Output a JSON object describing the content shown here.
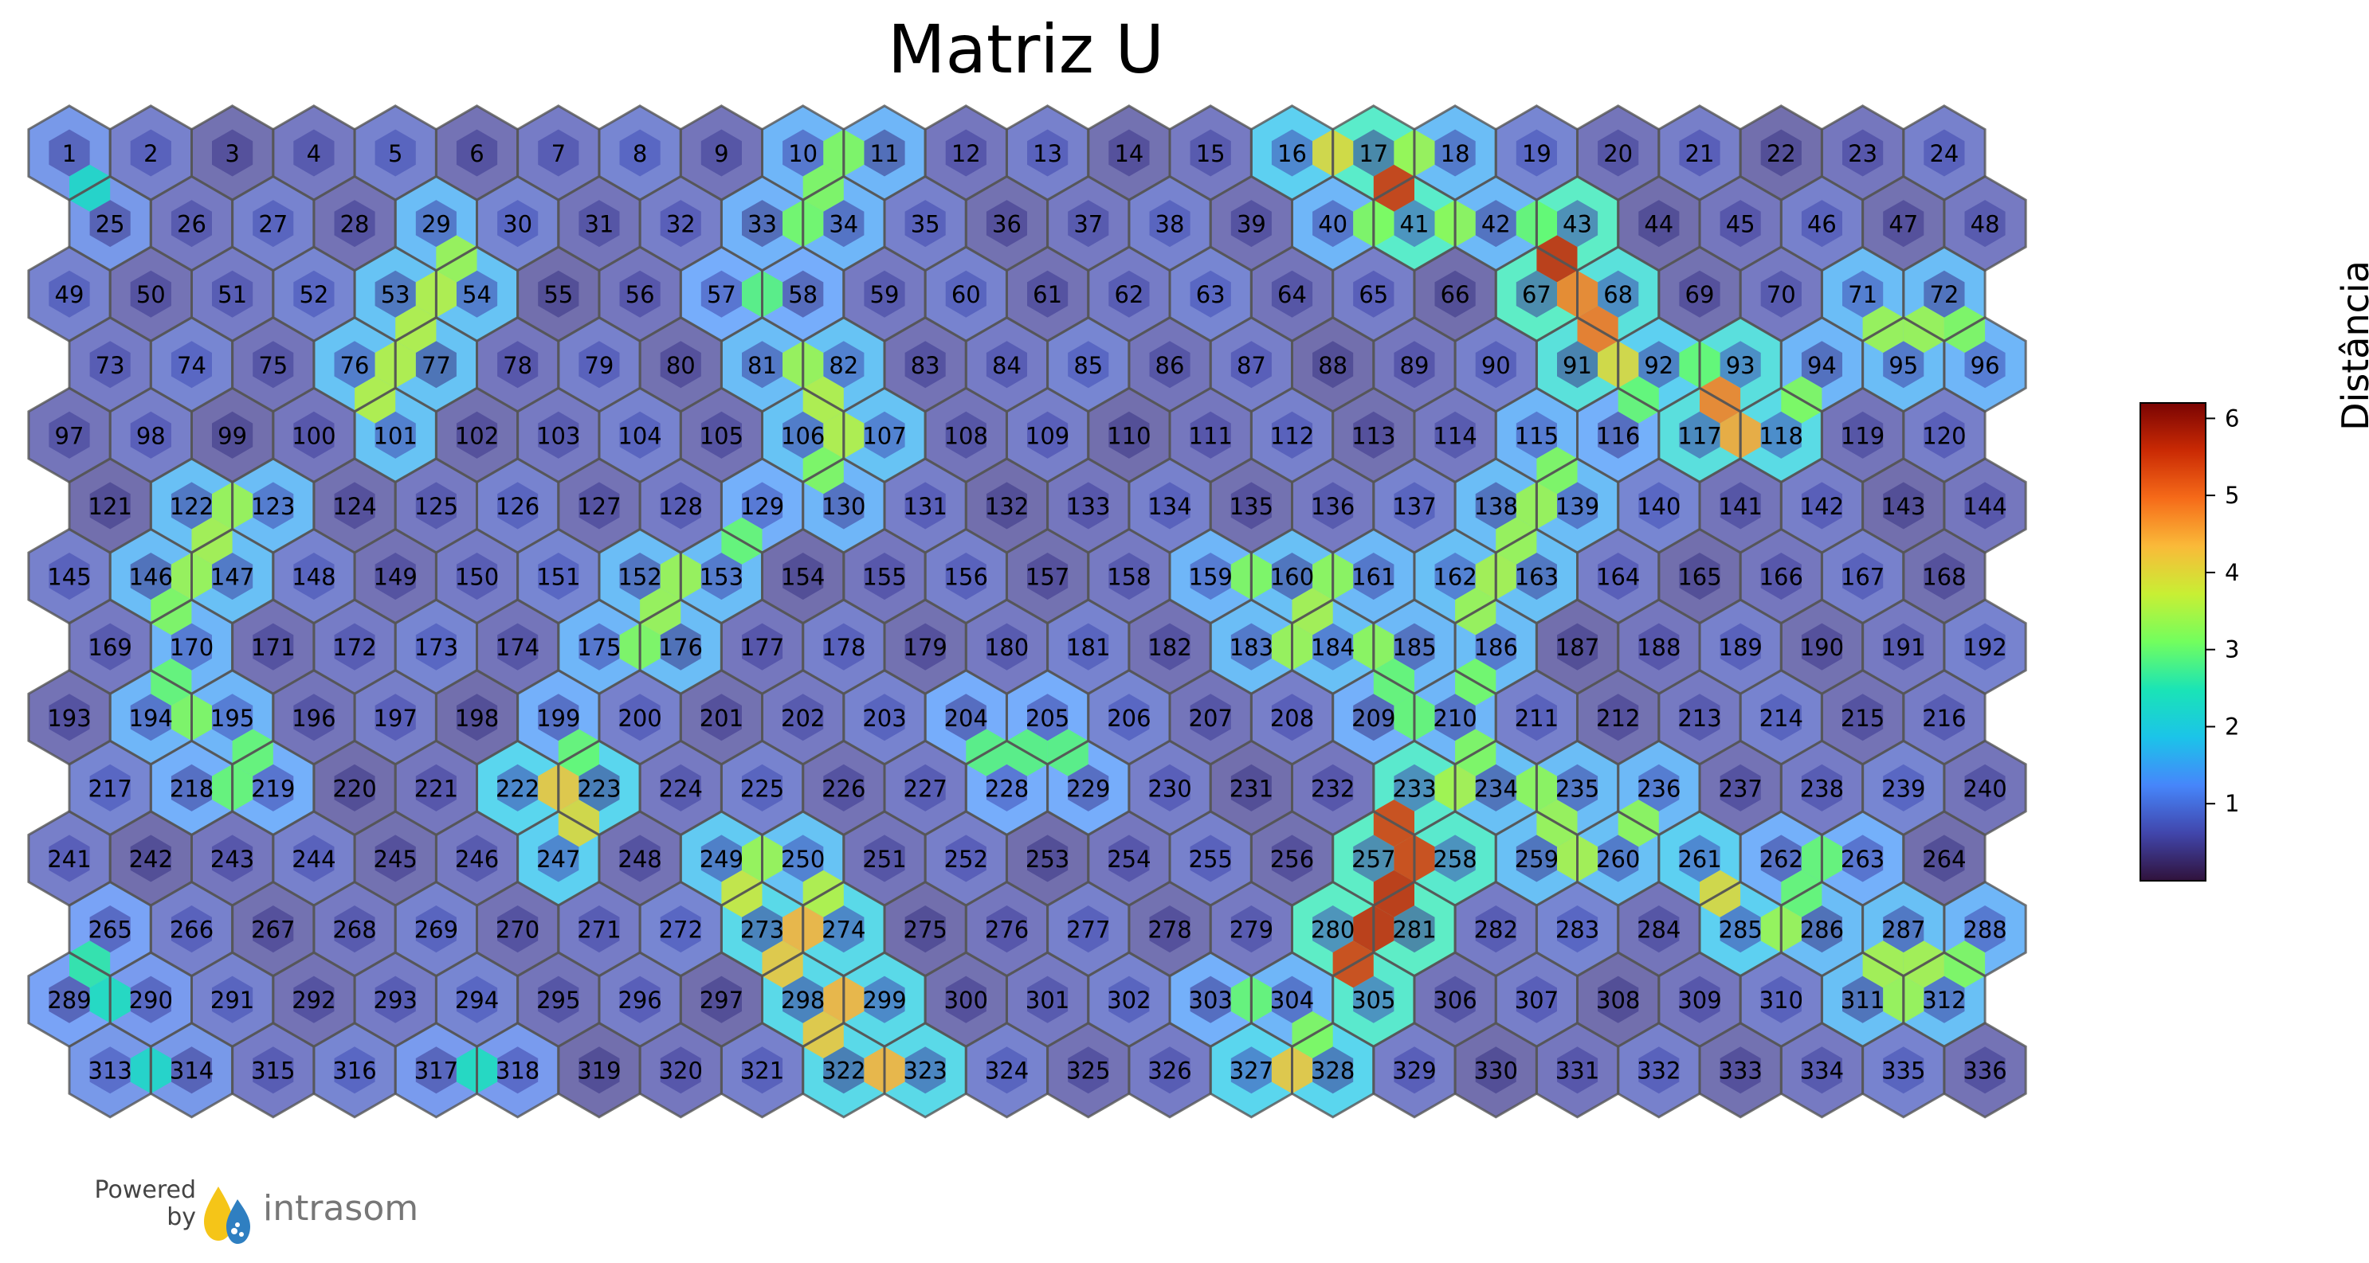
{
  "chart_data": {
    "type": "heatmap",
    "layout": "hexagonal",
    "title": "Matriz U",
    "grid": {
      "columns": 24,
      "rows": 14
    },
    "node_labels_first": 1,
    "node_labels_last": 336,
    "colorbar": {
      "label": "Distância",
      "range": [
        0,
        6.2
      ],
      "ticks": [
        1,
        2,
        3,
        4,
        5,
        6
      ],
      "tick_labels": [
        "1",
        "2",
        "3",
        "4",
        "5",
        "6"
      ],
      "colormap": "turbo"
    },
    "hotspots": [
      {
        "between": [
          16,
          17
        ],
        "distance": 4.0
      },
      {
        "between": [
          17,
          41
        ],
        "distance": 5.5
      },
      {
        "between": [
          17,
          18
        ],
        "distance": 3.4
      },
      {
        "between": [
          41,
          42
        ],
        "distance": 3.3
      },
      {
        "between": [
          40,
          41
        ],
        "distance": 3.2
      },
      {
        "between": [
          42,
          43
        ],
        "distance": 3.0
      },
      {
        "between": [
          43,
          67
        ],
        "distance": 5.6
      },
      {
        "between": [
          67,
          68
        ],
        "distance": 4.8
      },
      {
        "between": [
          68,
          91
        ],
        "distance": 4.9
      },
      {
        "between": [
          91,
          92
        ],
        "distance": 4.0
      },
      {
        "between": [
          92,
          116
        ],
        "distance": 3.0
      },
      {
        "between": [
          92,
          93
        ],
        "distance": 3.0
      },
      {
        "between": [
          93,
          117
        ],
        "distance": 4.8
      },
      {
        "between": [
          117,
          118
        ],
        "distance": 4.5
      },
      {
        "between": [
          94,
          118
        ],
        "distance": 3.2
      },
      {
        "between": [
          71,
          95
        ],
        "distance": 3.4
      },
      {
        "between": [
          72,
          95
        ],
        "distance": 3.4
      },
      {
        "between": [
          72,
          96
        ],
        "distance": 3.2
      },
      {
        "between": [
          53,
          54
        ],
        "distance": 3.6
      },
      {
        "between": [
          29,
          54
        ],
        "distance": 3.4
      },
      {
        "between": [
          53,
          77
        ],
        "distance": 3.6
      },
      {
        "between": [
          76,
          77
        ],
        "distance": 3.6
      },
      {
        "between": [
          76,
          101
        ],
        "distance": 3.6
      },
      {
        "between": [
          10,
          11
        ],
        "distance": 3.2
      },
      {
        "between": [
          10,
          34
        ],
        "distance": 3.2
      },
      {
        "between": [
          33,
          34
        ],
        "distance": 3.1
      },
      {
        "between": [
          57,
          58
        ],
        "distance": 2.9
      },
      {
        "between": [
          81,
          82
        ],
        "distance": 3.4
      },
      {
        "between": [
          82,
          106
        ],
        "distance": 3.6
      },
      {
        "between": [
          106,
          107
        ],
        "distance": 3.6
      },
      {
        "between": [
          106,
          130
        ],
        "distance": 3.2
      },
      {
        "between": [
          122,
          123
        ],
        "distance": 3.4
      },
      {
        "between": [
          122,
          147
        ],
        "distance": 3.5
      },
      {
        "between": [
          146,
          147
        ],
        "distance": 3.4
      },
      {
        "between": [
          146,
          170
        ],
        "distance": 3.2
      },
      {
        "between": [
          170,
          194
        ],
        "distance": 3.0
      },
      {
        "between": [
          194,
          195
        ],
        "distance": 3.2
      },
      {
        "between": [
          195,
          219
        ],
        "distance": 3.0
      },
      {
        "between": [
          218,
          219
        ],
        "distance": 3.0
      },
      {
        "between": [
          152,
          153
        ],
        "distance": 3.4
      },
      {
        "between": [
          152,
          176
        ],
        "distance": 3.4
      },
      {
        "between": [
          175,
          176
        ],
        "distance": 3.2
      },
      {
        "between": [
          129,
          153
        ],
        "distance": 3.0
      },
      {
        "between": [
          159,
          160
        ],
        "distance": 3.2
      },
      {
        "between": [
          160,
          184
        ],
        "distance": 3.5
      },
      {
        "between": [
          183,
          184
        ],
        "distance": 3.4
      },
      {
        "between": [
          160,
          161
        ],
        "distance": 3.3
      },
      {
        "between": [
          184,
          185
        ],
        "distance": 3.3
      },
      {
        "between": [
          185,
          209
        ],
        "distance": 3.0
      },
      {
        "between": [
          209,
          210
        ],
        "distance": 3.0
      },
      {
        "between": [
          138,
          139
        ],
        "distance": 3.4
      },
      {
        "between": [
          139,
          162
        ],
        "distance": 3.4
      },
      {
        "between": [
          162,
          163
        ],
        "distance": 3.5
      },
      {
        "between": [
          162,
          186
        ],
        "distance": 3.4
      },
      {
        "between": [
          115,
          139
        ],
        "distance": 3.2
      },
      {
        "between": [
          186,
          210
        ],
        "distance": 3.1
      },
      {
        "between": [
          210,
          234
        ],
        "distance": 3.2
      },
      {
        "between": [
          233,
          234
        ],
        "distance": 3.5
      },
      {
        "between": [
          234,
          235
        ],
        "distance": 3.3
      },
      {
        "between": [
          235,
          259
        ],
        "distance": 3.4
      },
      {
        "between": [
          259,
          260
        ],
        "distance": 3.5
      },
      {
        "between": [
          236,
          260
        ],
        "distance": 3.3
      },
      {
        "between": [
          222,
          223
        ],
        "distance": 4.2
      },
      {
        "between": [
          223,
          247
        ],
        "distance": 4.0
      },
      {
        "between": [
          199,
          223
        ],
        "distance": 3.0
      },
      {
        "between": [
          233,
          257
        ],
        "distance": 5.4
      },
      {
        "between": [
          257,
          258
        ],
        "distance": 5.4
      },
      {
        "between": [
          257,
          281
        ],
        "distance": 5.6
      },
      {
        "between": [
          280,
          281
        ],
        "distance": 5.6
      },
      {
        "between": [
          280,
          305
        ],
        "distance": 5.4
      },
      {
        "between": [
          249,
          273
        ],
        "distance": 3.8
      },
      {
        "between": [
          249,
          250
        ],
        "distance": 3.4
      },
      {
        "between": [
          250,
          274
        ],
        "distance": 3.6
      },
      {
        "between": [
          273,
          274
        ],
        "distance": 4.4
      },
      {
        "between": [
          273,
          298
        ],
        "distance": 4.2
      },
      {
        "between": [
          298,
          299
        ],
        "distance": 4.4
      },
      {
        "between": [
          298,
          322
        ],
        "distance": 4.2
      },
      {
        "between": [
          322,
          323
        ],
        "distance": 4.4
      },
      {
        "between": [
          304,
          328
        ],
        "distance": 3.2
      },
      {
        "between": [
          327,
          328
        ],
        "distance": 4.2
      },
      {
        "between": [
          303,
          304
        ],
        "distance": 3.0
      },
      {
        "between": [
          262,
          286
        ],
        "distance": 3.0
      },
      {
        "between": [
          261,
          285
        ],
        "distance": 4.0
      },
      {
        "between": [
          285,
          286
        ],
        "distance": 3.4
      },
      {
        "between": [
          262,
          263
        ],
        "distance": 3.0
      },
      {
        "between": [
          287,
          311
        ],
        "distance": 3.5
      },
      {
        "between": [
          287,
          312
        ],
        "distance": 3.5
      },
      {
        "between": [
          311,
          312
        ],
        "distance": 3.4
      },
      {
        "between": [
          288,
          312
        ],
        "distance": 3.2
      },
      {
        "between": [
          204,
          228
        ],
        "distance": 2.9
      },
      {
        "between": [
          205,
          228
        ],
        "distance": 2.9
      },
      {
        "between": [
          205,
          229
        ],
        "distance": 2.9
      },
      {
        "between": [
          1,
          25
        ],
        "distance": 2.3
      },
      {
        "between": [
          289,
          290
        ],
        "distance": 2.4
      },
      {
        "between": [
          265,
          289
        ],
        "distance": 2.6
      },
      {
        "between": [
          313,
          314
        ],
        "distance": 2.3
      },
      {
        "between": [
          317,
          318
        ],
        "distance": 2.4
      }
    ]
  },
  "branding": {
    "powered": "Powered",
    "by": "by",
    "name": "intrasom",
    "colors": {
      "drop_left": "#f5c518",
      "drop_right": "#2f7fc1"
    }
  }
}
